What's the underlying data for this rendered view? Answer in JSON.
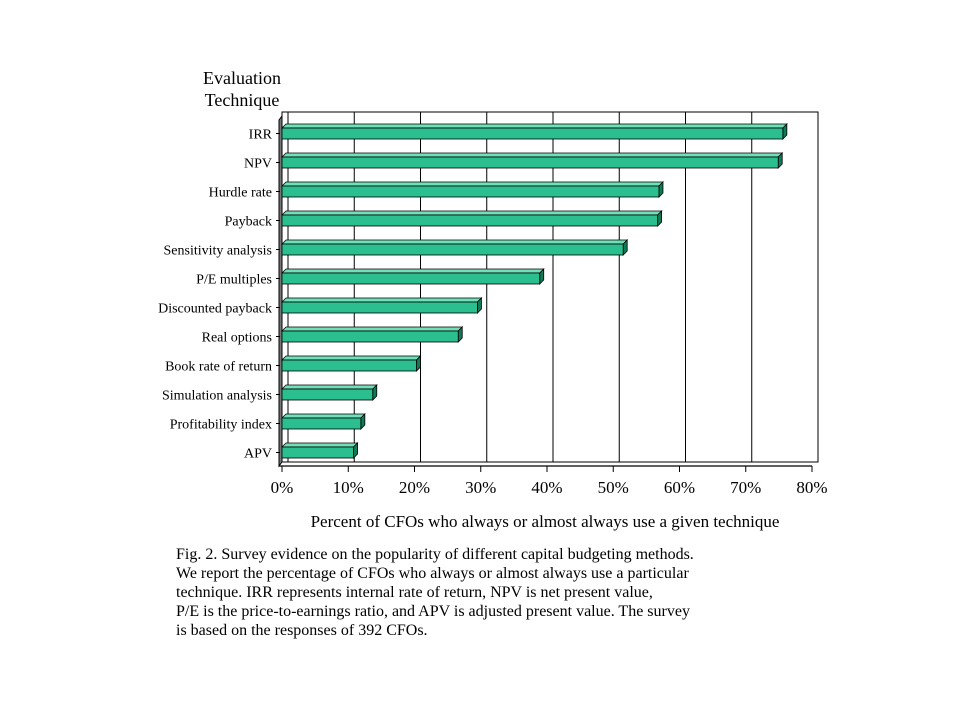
{
  "chart_data": {
    "type": "bar",
    "orientation": "horizontal",
    "ylabel": "Evaluation Technique",
    "xlabel": "Percent of CFOs who always or almost always use a given technique",
    "categories": [
      "IRR",
      "NPV",
      "Hurdle rate",
      "Payback",
      "Sensitivity analysis",
      "P/E multiples",
      "Discounted payback",
      "Real options",
      "Book rate of return",
      "Simulation analysis",
      "Profitability index",
      "APV"
    ],
    "values": [
      75.6,
      74.9,
      56.9,
      56.7,
      51.5,
      38.9,
      29.5,
      26.6,
      20.3,
      13.7,
      11.9,
      10.8
    ],
    "xlim": [
      0,
      80
    ],
    "xticks": [
      0,
      10,
      20,
      30,
      40,
      50,
      60,
      70,
      80
    ],
    "xtick_labels": [
      "0%",
      "10%",
      "20%",
      "30%",
      "40%",
      "50%",
      "60%",
      "70%",
      "80%"
    ],
    "grid": "vertical",
    "bar_color": "#2bbf8f",
    "style": "3d-bars"
  },
  "caption": {
    "lines": [
      "Fig. 2.  Survey evidence on the popularity of different capital budgeting methods.",
      "We report the percentage of CFOs who always or almost always use a particular",
      "technique. IRR represents internal rate of return, NPV is net present value,",
      "P/E is the price-to-earnings ratio, and APV is adjusted present value. The survey",
      "is based on the responses of 392 CFOs."
    ]
  }
}
